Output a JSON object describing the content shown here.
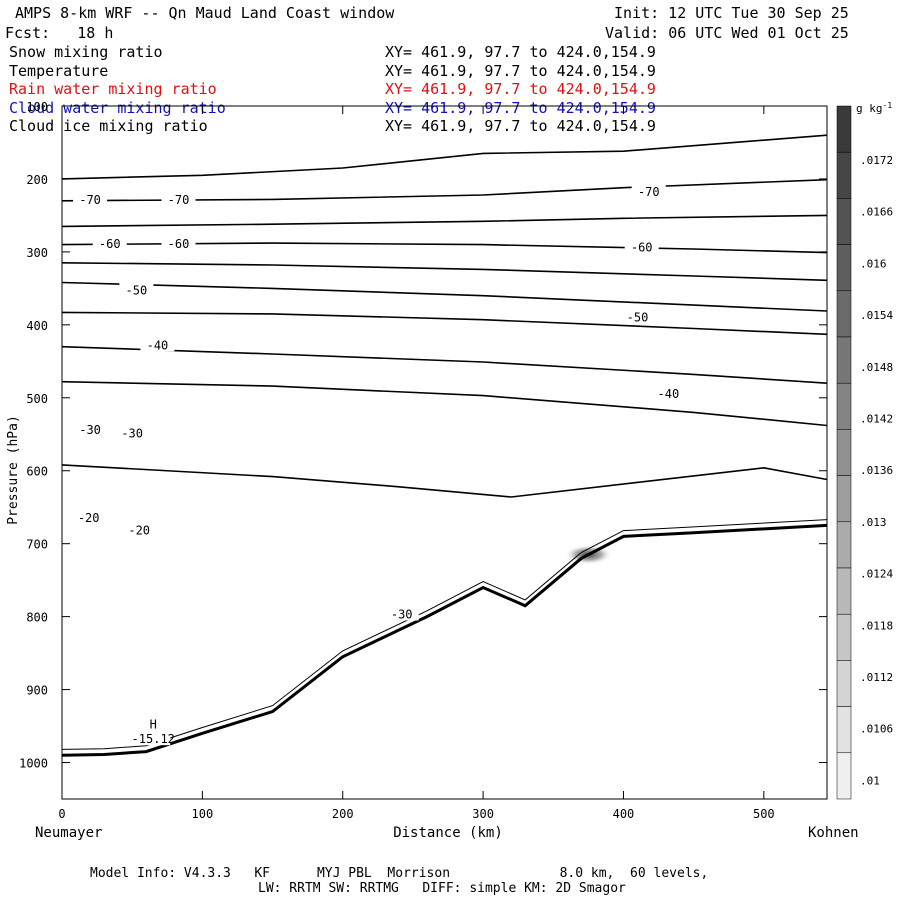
{
  "header": {
    "title": "AMPS 8-km WRF -- Qn Maud Land Coast window",
    "init": "Init: 12 UTC Tue 30 Sep 25",
    "fcst": "Fcst:   18 h",
    "valid": "Valid: 06 UTC Wed 01 Oct 25"
  },
  "fields": [
    {
      "name": "Snow mixing ratio",
      "xy": "XY= 461.9, 97.7 to 424.0,154.9",
      "color": "#000000"
    },
    {
      "name": "Temperature",
      "xy": "XY= 461.9, 97.7 to 424.0,154.9",
      "color": "#000000"
    },
    {
      "name": "Rain water mixing ratio",
      "xy": "XY= 461.9, 97.7 to 424.0,154.9",
      "color": "#e01010"
    },
    {
      "name": "Cloud water mixing ratio",
      "xy": "XY= 461.9, 97.7 to 424.0,154.9",
      "color": "#1010c0"
    },
    {
      "name": "Cloud ice mixing ratio",
      "xy": "XY= 461.9, 97.7 to 424.0,154.9",
      "color": "#000000"
    }
  ],
  "axes": {
    "ylabel": "Pressure (hPa)",
    "xlabel": "Distance (km)",
    "x_left_label": "Neumayer",
    "x_right_label": "Kohnen"
  },
  "footer": {
    "line1": "Model Info: V4.3.3   KF      MYJ PBL  Morrison              8.0 km,  60 levels,",
    "line2": "LW: RRTM SW: RRTMG   DIFF: simple KM: 2D Smagor"
  },
  "colorbar": {
    "unit": "g kg",
    "unit_sup": "-1",
    "labels": [
      ".0172",
      ".0166",
      ".016",
      ".0154",
      ".0148",
      ".0142",
      ".0136",
      ".013",
      ".0124",
      ".0118",
      ".0112",
      ".0106",
      ".01"
    ],
    "colors": [
      "#3a3a3a",
      "#464646",
      "#525252",
      "#5e5e5e",
      "#6b6b6b",
      "#777777",
      "#848484",
      "#919191",
      "#9e9e9e",
      "#ababab",
      "#b9b9b9",
      "#c6c6c6",
      "#d4d4d4",
      "#e2e2e2",
      "#f0f0f0"
    ]
  },
  "chart_data": {
    "type": "line",
    "title": "AMPS 8-km WRF -- Qn Maud Land Coast window",
    "xlabel": "Distance (km)",
    "ylabel": "Pressure (hPa)",
    "xlim": [
      0,
      545
    ],
    "ylim": [
      1050,
      100
    ],
    "xticks": [
      0,
      100,
      200,
      300,
      400,
      500
    ],
    "yticks": [
      100,
      200,
      300,
      400,
      500,
      600,
      700,
      800,
      900,
      1000
    ],
    "temperature_contours": [
      {
        "level": "-80",
        "points": [
          [
            0,
            200
          ],
          [
            100,
            195
          ],
          [
            200,
            185
          ],
          [
            300,
            165
          ],
          [
            400,
            162
          ],
          [
            545,
            140
          ]
        ]
      },
      {
        "level": "-70",
        "points": [
          [
            0,
            230
          ],
          [
            150,
            228
          ],
          [
            300,
            222
          ],
          [
            400,
            212
          ],
          [
            545,
            201
          ]
        ]
      },
      {
        "level": "-65",
        "points": [
          [
            0,
            265
          ],
          [
            150,
            262
          ],
          [
            300,
            258
          ],
          [
            400,
            254
          ],
          [
            545,
            250
          ]
        ]
      },
      {
        "level": "-60",
        "points": [
          [
            0,
            290
          ],
          [
            150,
            288
          ],
          [
            300,
            290
          ],
          [
            450,
            296
          ],
          [
            545,
            301
          ]
        ]
      },
      {
        "level": "-55",
        "points": [
          [
            0,
            315
          ],
          [
            150,
            318
          ],
          [
            300,
            324
          ],
          [
            450,
            333
          ],
          [
            545,
            339
          ]
        ]
      },
      {
        "level": "-50",
        "points": [
          [
            0,
            342
          ],
          [
            150,
            350
          ],
          [
            300,
            360
          ],
          [
            450,
            373
          ],
          [
            545,
            381
          ]
        ]
      },
      {
        "level": "-45",
        "points": [
          [
            0,
            383
          ],
          [
            150,
            385
          ],
          [
            300,
            393
          ],
          [
            450,
            405
          ],
          [
            545,
            413
          ]
        ]
      },
      {
        "level": "-40",
        "points": [
          [
            0,
            430
          ],
          [
            150,
            440
          ],
          [
            300,
            451
          ],
          [
            450,
            468
          ],
          [
            545,
            480
          ]
        ]
      },
      {
        "level": "-35",
        "points": [
          [
            0,
            478
          ],
          [
            150,
            484
          ],
          [
            300,
            497
          ],
          [
            450,
            520
          ],
          [
            545,
            538
          ]
        ]
      },
      {
        "level": "-30",
        "points": [
          [
            0,
            592
          ],
          [
            150,
            608
          ],
          [
            240,
            622
          ],
          [
            320,
            636
          ],
          [
            500,
            596
          ],
          [
            545,
            612
          ]
        ]
      }
    ],
    "labels": [
      {
        "text": "-70",
        "km": 20,
        "hpa": 229
      },
      {
        "text": "-70",
        "km": 83,
        "hpa": 229
      },
      {
        "text": "-70",
        "km": 418,
        "hpa": 218
      },
      {
        "text": "-60",
        "km": 34,
        "hpa": 289
      },
      {
        "text": "-60",
        "km": 83,
        "hpa": 289
      },
      {
        "text": "-60",
        "km": 413,
        "hpa": 294
      },
      {
        "text": "-50",
        "km": 53,
        "hpa": 353
      },
      {
        "text": "-50",
        "km": 410,
        "hpa": 390
      },
      {
        "text": "-40",
        "km": 68,
        "hpa": 428
      },
      {
        "text": "-40",
        "km": 432,
        "hpa": 495
      },
      {
        "text": "-30",
        "km": 20,
        "hpa": 544
      },
      {
        "text": "-30",
        "km": 50,
        "hpa": 549
      },
      {
        "text": "-30",
        "km": 242,
        "hpa": 797
      },
      {
        "text": "-20",
        "km": 19,
        "hpa": 665
      },
      {
        "text": "-20",
        "km": 55,
        "hpa": 682
      },
      {
        "text": "H",
        "km": 65,
        "hpa": 948
      },
      {
        "text": "-15.12",
        "km": 65,
        "hpa": 968
      }
    ],
    "terrain": [
      [
        0,
        990
      ],
      [
        30,
        989
      ],
      [
        60,
        985
      ],
      [
        100,
        960
      ],
      [
        150,
        930
      ],
      [
        200,
        855
      ],
      [
        260,
        800
      ],
      [
        300,
        760
      ],
      [
        330,
        785
      ],
      [
        370,
        720
      ],
      [
        400,
        690
      ],
      [
        450,
        685
      ],
      [
        545,
        675
      ]
    ],
    "snow_max": {
      "km": 375,
      "hpa": 715
    }
  }
}
